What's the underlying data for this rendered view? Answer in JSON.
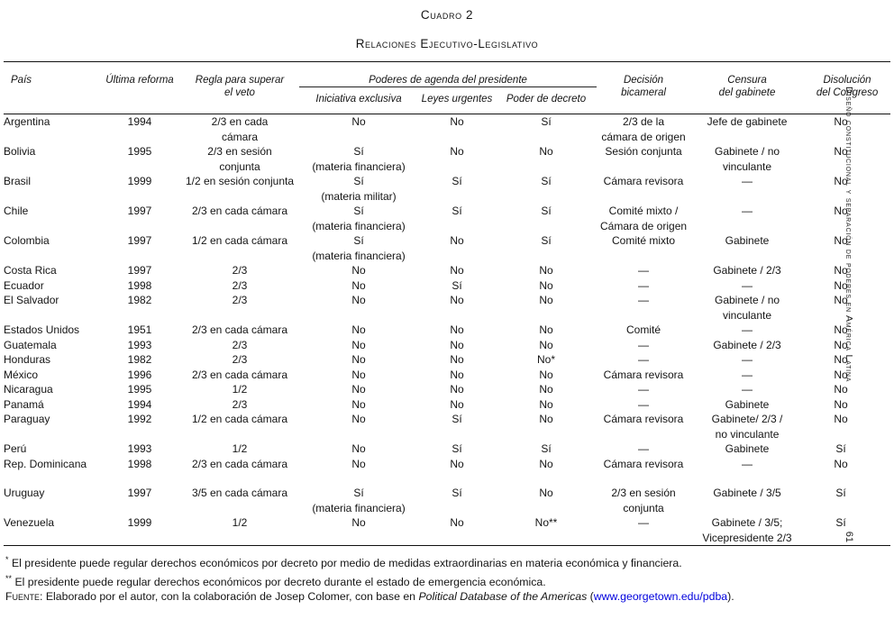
{
  "title": {
    "caption": "Cuadro 2",
    "subtitle": "Relaciones Ejecutivo-Legislativo"
  },
  "sidebar": {
    "running_head": "Diseño constitucional y separación de poderes en América Latina",
    "page_number": "61"
  },
  "table": {
    "headers": {
      "pais": "País",
      "ultima_reforma": "Última reforma",
      "regla_veto": "Regla para superar\nel veto",
      "decision_bicameral": "Decisión\nbicameral",
      "censura_gabinete": "Censura\ndel gabinete",
      "disolucion_congreso": "Disolución\ndel Congreso"
    },
    "group_header": "Poderes de agenda del presidente",
    "sub_headers": {
      "iniciativa_exclusiva": "Iniciativa exclusiva",
      "leyes_urgentes": "Leyes urgentes",
      "poder_decreto": "Poder de decreto"
    },
    "rows": [
      [
        "Argentina",
        "1994",
        "2/3 en cada\ncámara",
        "No",
        "No",
        "Sí",
        "2/3 de la\ncámara de origen",
        "Jefe de gabinete",
        "No"
      ],
      [
        "Bolivia",
        "1995",
        "2/3 en sesión\nconjunta",
        "Sí\n(materia financiera)",
        "No",
        "No",
        "Sesión conjunta",
        "Gabinete / no\nvinculante",
        "No"
      ],
      [
        "Brasil",
        "1999",
        "1/2 en sesión conjunta",
        "Sí\n(materia militar)",
        "Sí",
        "Sí",
        "Cámara revisora",
        "—",
        "No"
      ],
      [
        "Chile",
        "1997",
        "2/3 en cada cámara",
        "Sí\n(materia financiera)",
        "Sí",
        "Sí",
        "Comité mixto /\nCámara de origen",
        "—",
        "No"
      ],
      [
        "Colombia",
        "1997",
        "1/2 en cada cámara",
        "Sí\n(materia financiera)",
        "No",
        "Sí",
        "Comité mixto",
        "Gabinete",
        "No"
      ],
      [
        "Costa Rica",
        "1997",
        "2/3",
        "No",
        "No",
        "No",
        "—",
        "Gabinete / 2/3",
        "No"
      ],
      [
        "Ecuador",
        "1998",
        "2/3",
        "No",
        "Sí",
        "No",
        "—",
        "—",
        "No"
      ],
      [
        "El Salvador",
        "1982",
        "2/3",
        "No",
        "No",
        "No",
        "—",
        "Gabinete / no\nvinculante",
        "No"
      ],
      [
        "Estados Unidos",
        "1951",
        "2/3 en cada cámara",
        "No",
        "No",
        "No",
        "Comité",
        "—",
        "No"
      ],
      [
        "Guatemala",
        "1993",
        "2/3",
        "No",
        "No",
        "No",
        "—",
        "Gabinete / 2/3",
        "No"
      ],
      [
        "Honduras",
        "1982",
        "2/3",
        "No",
        "No",
        "No*",
        "—",
        "—",
        "No"
      ],
      [
        "México",
        "1996",
        "2/3 en cada cámara",
        "No",
        "No",
        "No",
        "Cámara revisora",
        "—",
        "No"
      ],
      [
        "Nicaragua",
        "1995",
        "1/2",
        "No",
        "No",
        "No",
        "—",
        "—",
        "No"
      ],
      [
        "Panamá",
        "1994",
        "2/3",
        "No",
        "No",
        "No",
        "—",
        "Gabinete",
        "No"
      ],
      [
        "Paraguay",
        "1992",
        "1/2 en cada cámara",
        "No",
        "Sí",
        "No",
        "Cámara revisora",
        "Gabinete/ 2/3 /\nno vinculante",
        "No"
      ],
      [
        "Perú",
        "1993",
        "1/2",
        "No",
        "Sí",
        "Sí",
        "—",
        "Gabinete",
        "Sí"
      ],
      [
        "Rep. Dominicana",
        "1998",
        "2/3 en cada cámara",
        "No",
        "No",
        "No",
        "Cámara revisora",
        "—",
        "No"
      ],
      [
        "Uruguay",
        "1997",
        "3/5 en cada cámara",
        "Sí\n(materia financiera)",
        "Sí",
        "No",
        "2/3 en sesión\nconjunta",
        "Gabinete / 3/5",
        "Sí"
      ],
      [
        "Venezuela",
        "1999",
        "1/2",
        "No",
        "No",
        "No**",
        "—",
        "Gabinete / 3/5;\nVicepresidente 2/3",
        "Sí"
      ]
    ]
  },
  "footnotes": [
    {
      "marker": "*",
      "text": "El presidente puede regular derechos económicos por decreto por medio de medidas extraordinarias en materia económica y financiera."
    },
    {
      "marker": "**",
      "text": "El presidente puede regular derechos económicos por decreto durante el estado de emergencia económica."
    }
  ],
  "source": {
    "label": "Fuente:",
    "text": " Elaborado por el autor, con la colaboración de Josep Colomer, con base en ",
    "work": "Political Database of the Americas",
    "pre_link": " (",
    "link": "www.georgetown.edu/pdba",
    "post_link": ")."
  }
}
